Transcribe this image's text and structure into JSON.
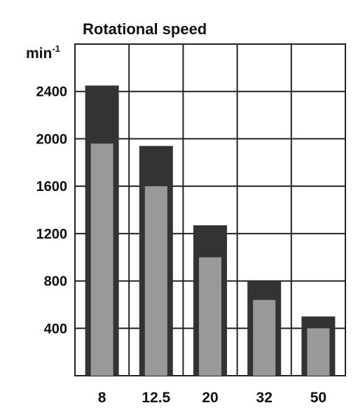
{
  "chart_data": {
    "type": "bar",
    "title": "Rotational speed",
    "unit_label": "min",
    "unit_exponent": "-1",
    "categories": [
      "8",
      "12.5",
      "20",
      "32",
      "50"
    ],
    "series": [
      {
        "values": [
          2450,
          1940,
          1270,
          800,
          500
        ]
      },
      {
        "values": [
          1960,
          1600,
          1000,
          640,
          400
        ]
      }
    ],
    "yticks": [
      "400",
      "800",
      "1200",
      "1600",
      "2000",
      "2400"
    ],
    "ylim": [
      0,
      2800
    ],
    "grid": true,
    "colors": {
      "outer_bar": "#333333",
      "inner_bar": "#999999",
      "grid": "#222222"
    }
  }
}
